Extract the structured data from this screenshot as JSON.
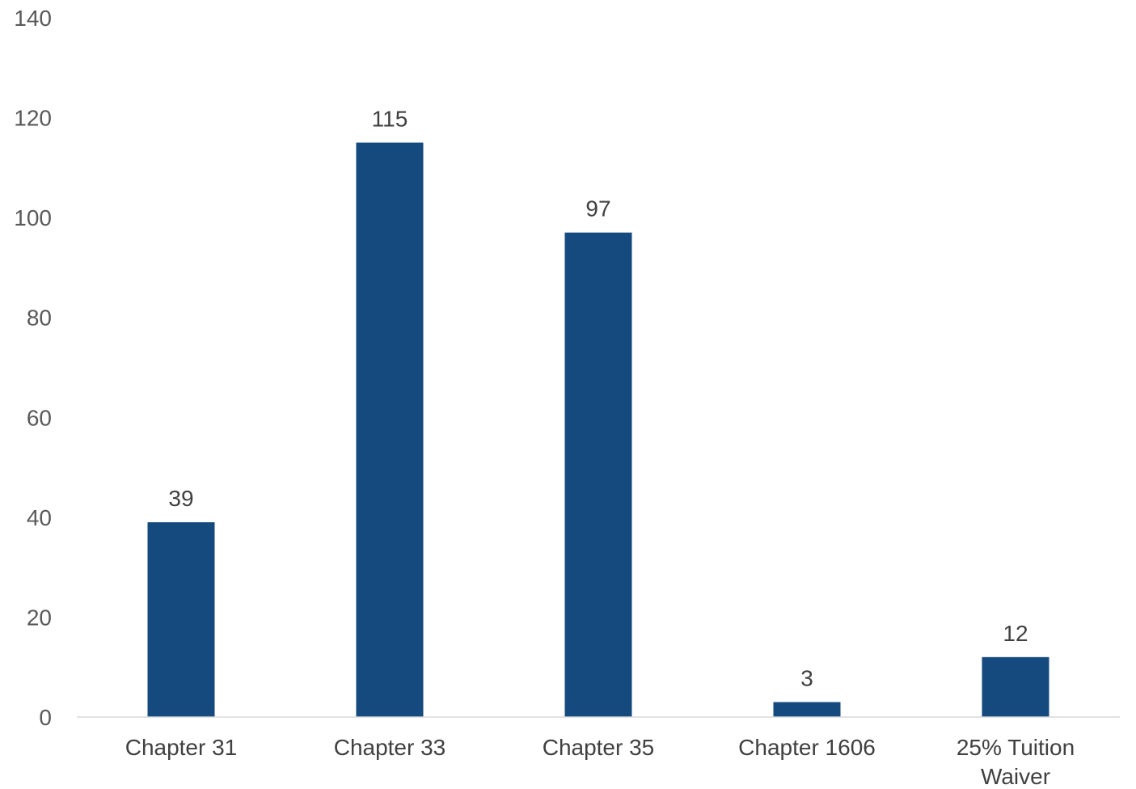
{
  "chart_data": {
    "type": "bar",
    "title": "",
    "xlabel": "",
    "ylabel": "",
    "categories": [
      "Chapter 31",
      "Chapter 33",
      "Chapter 35",
      "Chapter 1606",
      "25% Tuition Waiver"
    ],
    "category_label_lines": [
      [
        "Chapter 31"
      ],
      [
        "Chapter 33"
      ],
      [
        "Chapter 35"
      ],
      [
        "Chapter 1606"
      ],
      [
        "25% Tuition",
        "Waiver"
      ]
    ],
    "values": [
      39,
      115,
      97,
      3,
      12
    ],
    "data_labels": [
      "39",
      "115",
      "97",
      "3",
      "12"
    ],
    "ylim": [
      0,
      140
    ],
    "yticks": [
      0,
      20,
      40,
      60,
      80,
      100,
      120,
      140
    ],
    "ytick_labels": [
      "0",
      "20",
      "40",
      "60",
      "80",
      "100",
      "120",
      "140"
    ],
    "grid": false,
    "legend": "none",
    "bar_color": "#154a7e"
  }
}
